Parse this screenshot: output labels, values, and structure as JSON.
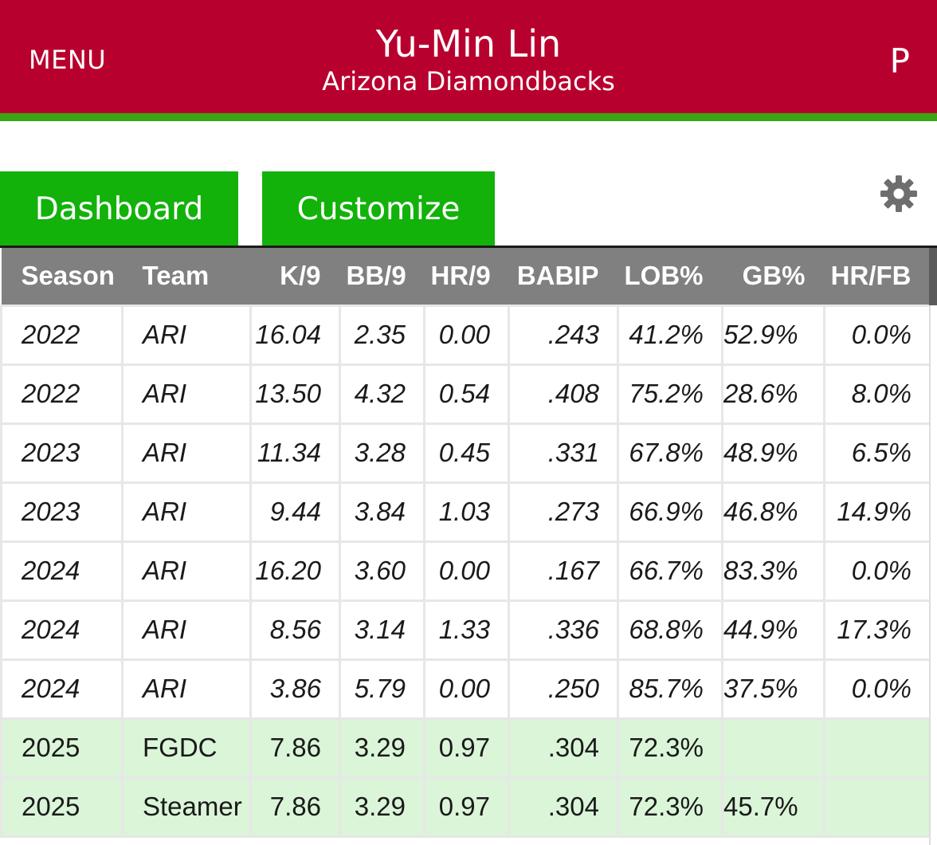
{
  "header": {
    "menu_label": "MENU",
    "player_name": "Yu-Min Lin",
    "team_name": "Arizona Diamondbacks",
    "profile_label": "P",
    "bg_color": "#b8002e",
    "accent_color": "#3aa615"
  },
  "tabs": {
    "dashboard_label": "Dashboard",
    "customize_label": "Customize",
    "color": "#12b20b"
  },
  "settings_icon": "gear-icon",
  "table": {
    "columns": [
      "Season",
      "Team",
      "K/9",
      "BB/9",
      "HR/9",
      "BABIP",
      "LOB%",
      "GB%",
      "HR/FB"
    ],
    "rows": [
      {
        "type": "hist",
        "cells": [
          "2022",
          "ARI",
          "16.04",
          "2.35",
          "0.00",
          ".243",
          "41.2%",
          "52.9%",
          "0.0%"
        ]
      },
      {
        "type": "hist",
        "cells": [
          "2022",
          "ARI",
          "13.50",
          "4.32",
          "0.54",
          ".408",
          "75.2%",
          "28.6%",
          "8.0%"
        ]
      },
      {
        "type": "hist",
        "cells": [
          "2023",
          "ARI",
          "11.34",
          "3.28",
          "0.45",
          ".331",
          "67.8%",
          "48.9%",
          "6.5%"
        ]
      },
      {
        "type": "hist",
        "cells": [
          "2023",
          "ARI",
          "9.44",
          "3.84",
          "1.03",
          ".273",
          "66.9%",
          "46.8%",
          "14.9%"
        ]
      },
      {
        "type": "hist",
        "cells": [
          "2024",
          "ARI",
          "16.20",
          "3.60",
          "0.00",
          ".167",
          "66.7%",
          "83.3%",
          "0.0%"
        ]
      },
      {
        "type": "hist",
        "cells": [
          "2024",
          "ARI",
          "8.56",
          "3.14",
          "1.33",
          ".336",
          "68.8%",
          "44.9%",
          "17.3%"
        ]
      },
      {
        "type": "hist",
        "cells": [
          "2024",
          "ARI",
          "3.86",
          "5.79",
          "0.00",
          ".250",
          "85.7%",
          "37.5%",
          "0.0%"
        ]
      },
      {
        "type": "proj",
        "cells": [
          "2025",
          "FGDC",
          "7.86",
          "3.29",
          "0.97",
          ".304",
          "72.3%",
          "",
          ""
        ]
      },
      {
        "type": "proj",
        "cells": [
          "2025",
          "Steamer",
          "7.86",
          "3.29",
          "0.97",
          ".304",
          "72.3%",
          "45.7%",
          ""
        ]
      }
    ]
  }
}
